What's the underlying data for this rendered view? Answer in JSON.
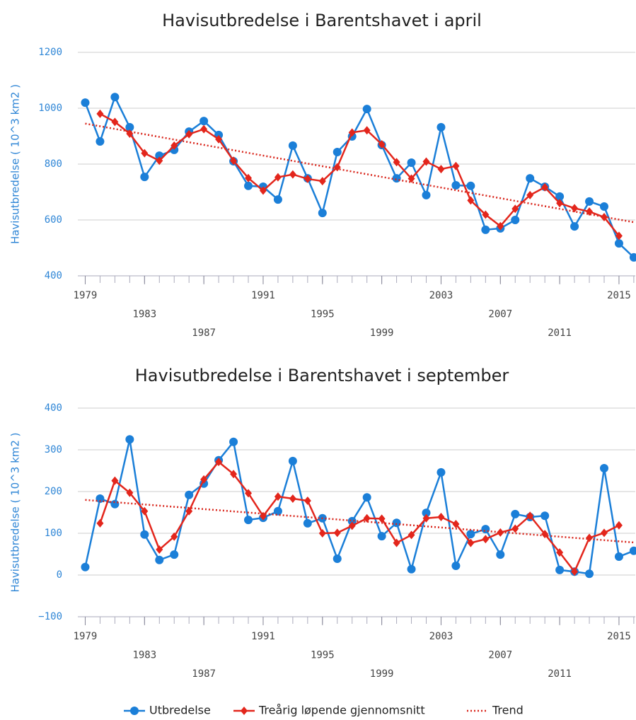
{
  "chart_data": [
    {
      "type": "line",
      "title": "Havisutbredelse i Barentshavet i april",
      "ylabel": "Havisutbredelse ( 10^3 km2 )",
      "x": [
        1979,
        1980,
        1981,
        1982,
        1983,
        1984,
        1985,
        1986,
        1987,
        1988,
        1989,
        1990,
        1991,
        1992,
        1993,
        1994,
        1995,
        1996,
        1997,
        1998,
        1999,
        2000,
        2001,
        2002,
        2003,
        2004,
        2005,
        2006,
        2007,
        2008,
        2009,
        2010,
        2011,
        2012,
        2013,
        2014,
        2015,
        2016
      ],
      "xlim": [
        1978.5,
        2016.1
      ],
      "xticks": [
        1979,
        1983,
        1987,
        1991,
        1995,
        1999,
        2003,
        2007,
        2011,
        2015
      ],
      "ylim": [
        400,
        1200
      ],
      "yticks": [
        400,
        600,
        800,
        1000,
        1200
      ],
      "grid": true,
      "series": [
        {
          "name": "Utbredelse",
          "color": "#1b7fd8",
          "marker": "circle",
          "values": [
            1020,
            881,
            1040,
            932,
            754,
            830,
            851,
            916,
            954,
            904,
            810,
            722,
            719,
            673,
            866,
            749,
            625,
            843,
            899,
            997,
            868,
            749,
            805,
            689,
            932,
            724,
            722,
            565,
            570,
            600,
            749,
            719,
            684,
            577,
            666,
            648,
            516,
            466
          ]
        },
        {
          "name": "Treårig løpende gjennomsnitt",
          "color": "#e3261c",
          "marker": "diamond",
          "values": [
            null,
            980,
            951,
            909,
            839,
            812,
            866,
            907,
            925,
            889,
            812,
            750,
            705,
            753,
            763,
            747,
            739,
            789,
            913,
            921,
            871,
            807,
            748,
            809,
            782,
            793,
            670,
            619,
            578,
            640,
            689,
            717,
            660,
            642,
            630,
            610,
            543,
            null
          ]
        },
        {
          "name": "Trend",
          "color": "#d9261c",
          "dash": "dotted",
          "x": [
            1979,
            2016
          ],
          "values": [
            945,
            592
          ]
        }
      ]
    },
    {
      "type": "line",
      "title": "Havisutbredelse i Barentshavet i september",
      "ylabel": "Havisutbredelse ( 10^3 km2 )",
      "x": [
        1979,
        1980,
        1981,
        1982,
        1983,
        1984,
        1985,
        1986,
        1987,
        1988,
        1989,
        1990,
        1991,
        1992,
        1993,
        1994,
        1995,
        1996,
        1997,
        1998,
        1999,
        2000,
        2001,
        2002,
        2003,
        2004,
        2005,
        2006,
        2007,
        2008,
        2009,
        2010,
        2011,
        2012,
        2013,
        2014,
        2015,
        2016
      ],
      "xlim": [
        1978.5,
        2016.1
      ],
      "xticks": [
        1979,
        1983,
        1987,
        1991,
        1995,
        1999,
        2003,
        2007,
        2011,
        2015
      ],
      "ylim": [
        -100,
        400
      ],
      "yticks": [
        {
          "value": -100,
          "label": "−100"
        },
        0,
        100,
        200,
        300,
        400
      ],
      "grid": true,
      "series": [
        {
          "color": "#1b7fd8",
          "marker": "circle",
          "values": [
            19,
            183,
            170,
            325,
            97,
            36,
            49,
            192,
            219,
            275,
            319,
            132,
            137,
            153,
            273,
            124,
            136,
            39,
            129,
            186,
            93,
            125,
            14,
            149,
            246,
            22,
            98,
            110,
            49,
            146,
            139,
            142,
            12,
            8,
            3,
            256,
            44,
            58
          ]
        },
        {
          "color": "#e3261c",
          "marker": "diamond",
          "values": [
            null,
            124,
            226,
            197,
            153,
            61,
            92,
            153,
            229,
            271,
            242,
            196,
            141,
            188,
            183,
            178,
            100,
            101,
            118,
            136,
            135,
            77,
            96,
            136,
            139,
            122,
            77,
            86,
            102,
            111,
            142,
            98,
            54,
            8,
            89,
            101,
            119,
            null
          ]
        },
        {
          "color": "#d9261c",
          "dash": "dotted",
          "x": [
            1979,
            2016
          ],
          "values": [
            180,
            78
          ]
        }
      ]
    }
  ]
}
